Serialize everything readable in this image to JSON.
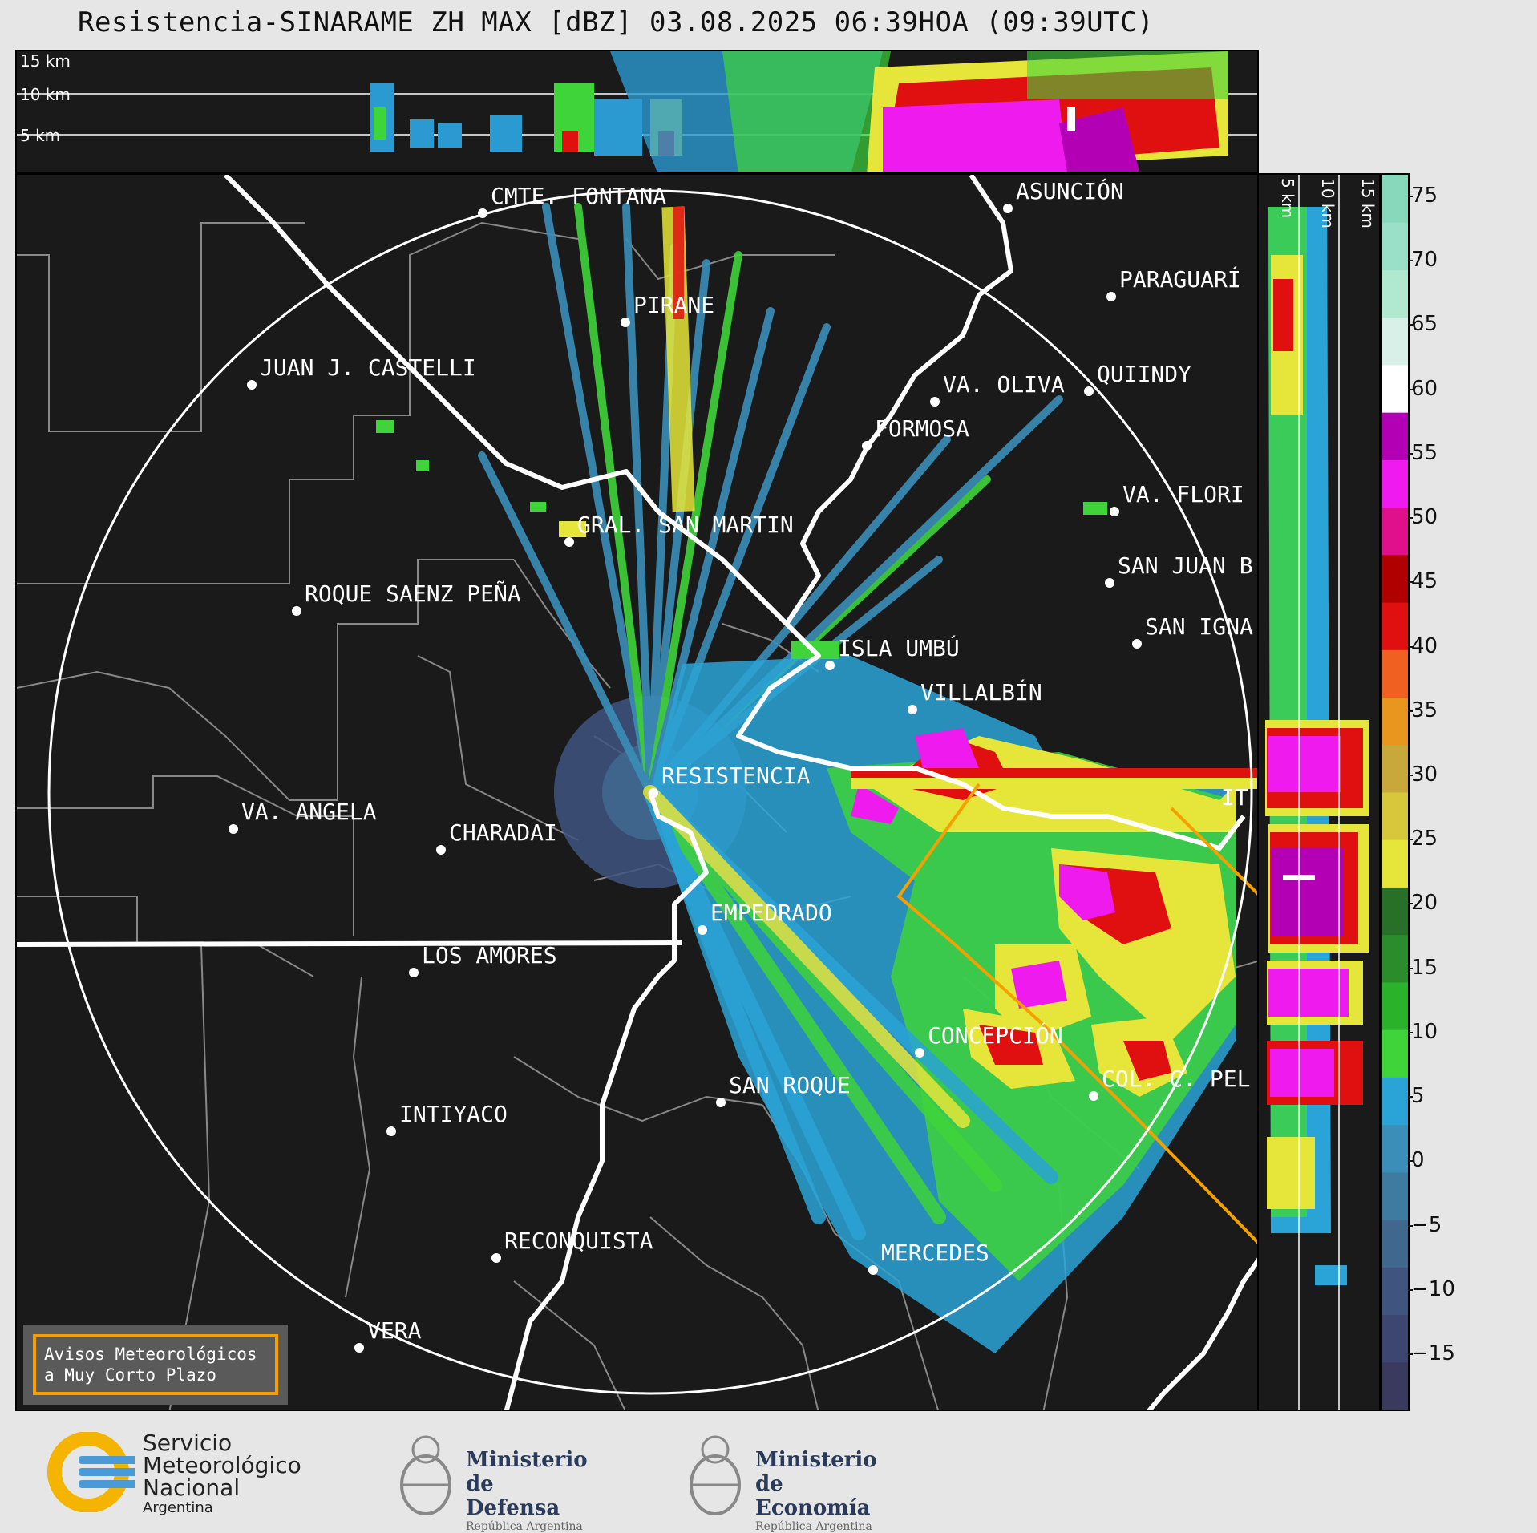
{
  "title": "Resistencia-SINARAME ZH MAX [dBZ] 03.08.2025 06:39HOA (09:39UTC)",
  "height_labels": [
    "15 km",
    "10 km",
    "5 km"
  ],
  "colorbar": {
    "ticks": [
      "75",
      "70",
      "65",
      "60",
      "55",
      "50",
      "45",
      "40",
      "35",
      "30",
      "25",
      "20",
      "15",
      "10",
      "5",
      "0",
      "−5",
      "−10",
      "−15"
    ],
    "colors": [
      "#3a3a5e",
      "#3d4670",
      "#3f5580",
      "#40688f",
      "#3f7ba0",
      "#3a8eb8",
      "#2aa4d6",
      "#3fd43a",
      "#2ab32a",
      "#2a8c2a",
      "#287028",
      "#e6e63a",
      "#d6c83a",
      "#c8a83a",
      "#e8961e",
      "#f06020",
      "#e01010",
      "#b00000",
      "#e0108c",
      "#ee1aee",
      "#b400b4",
      "#ffffff",
      "#d8f0e8",
      "#b0e8d0",
      "#9ae0c8",
      "#88d8bc"
    ],
    "unit": "dBZ"
  },
  "cities": [
    {
      "name": "CMTE. FONTANA"
    },
    {
      "name": "ASUNCIÓN"
    },
    {
      "name": "PARAGUARÍ"
    },
    {
      "name": "PIRANE"
    },
    {
      "name": "JUAN J. CASTELLI"
    },
    {
      "name": "VA. OLIVA"
    },
    {
      "name": "QUIINDY"
    },
    {
      "name": "FORMOSA"
    },
    {
      "name": "VA. FLORI"
    },
    {
      "name": "GRAL. SAN MARTIN"
    },
    {
      "name": "SAN JUAN B"
    },
    {
      "name": "ROQUE SAENZ PEÑA"
    },
    {
      "name": "SAN IGNA"
    },
    {
      "name": "ISLA UMBÚ"
    },
    {
      "name": "VILLALBÍN"
    },
    {
      "name": "RESISTENCIA"
    },
    {
      "name": "VA. ANGELA"
    },
    {
      "name": "CHARADAI"
    },
    {
      "name": "IT"
    },
    {
      "name": "EMPEDRADO"
    },
    {
      "name": "LOS AMORES"
    },
    {
      "name": "CONCEPCIÓN"
    },
    {
      "name": "SAN ROQUE"
    },
    {
      "name": "COL. C. PEL"
    },
    {
      "name": "INTIYACO"
    },
    {
      "name": "RECONQUISTA"
    },
    {
      "name": "MERCEDES"
    },
    {
      "name": "VERA"
    }
  ],
  "aviso": {
    "line1": "Avisos Meteorológicos",
    "line2": "a Muy Corto Plazo"
  },
  "logos": {
    "smn": {
      "line1": "Servicio",
      "line2": "Meteorológico",
      "line3": "Nacional",
      "line4": "Argentina"
    },
    "defensa": {
      "line1": "Ministerio",
      "line2": "de Defensa",
      "line3": "República Argentina"
    },
    "economia": {
      "line1": "Ministerio",
      "line2": "de Economía",
      "line3": "República Argentina"
    }
  }
}
